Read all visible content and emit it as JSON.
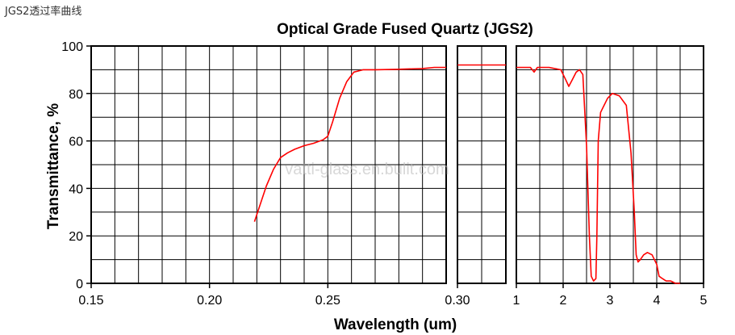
{
  "caption": "JGS2透过率曲线",
  "watermark": "vatti-glass.en.bulit.com",
  "chart_data": {
    "type": "line",
    "title": "Optical Grade Fused Quartz  (JGS2)",
    "xlabel": "Wavelength (um)",
    "ylabel": "Transmittance, %",
    "ylim": [
      0,
      100
    ],
    "yticks": [
      "0",
      "20",
      "40",
      "60",
      "80",
      "100"
    ],
    "grid": true,
    "line_color": "#ff0000",
    "panels": [
      {
        "name": "uv",
        "xlim": [
          0.15,
          0.3
        ],
        "xticks": [
          0.15,
          0.2,
          0.25
        ],
        "xtick_labels": [
          "0.15",
          "0.20",
          "0.25"
        ],
        "grid_x_step": 0.01,
        "x": [
          0.219,
          0.221,
          0.224,
          0.227,
          0.23,
          0.233,
          0.236,
          0.24,
          0.244,
          0.248,
          0.25,
          0.252,
          0.255,
          0.258,
          0.261,
          0.265,
          0.27,
          0.28,
          0.29,
          0.295,
          0.3
        ],
        "y": [
          26,
          32,
          41,
          48,
          53,
          55,
          56.5,
          58,
          59,
          60.5,
          62,
          68,
          78,
          85,
          89,
          90,
          90,
          90.2,
          90.5,
          91,
          91
        ]
      },
      {
        "name": "mid",
        "xlim": [
          0.3,
          0.32
        ],
        "xticks": [
          0.3
        ],
        "xtick_labels": [
          "0.30"
        ],
        "grid_x_step": 0.01,
        "x": [
          0.3,
          0.32
        ],
        "y": [
          92,
          92
        ]
      },
      {
        "name": "ir",
        "xlim": [
          1,
          5
        ],
        "xticks": [
          1,
          2,
          3,
          4,
          5
        ],
        "xtick_labels": [
          "1",
          "2",
          "3",
          "4",
          "5"
        ],
        "grid_x_step": 0.5,
        "x": [
          1.0,
          1.3,
          1.38,
          1.45,
          1.7,
          1.95,
          2.05,
          2.12,
          2.2,
          2.28,
          2.35,
          2.42,
          2.5,
          2.56,
          2.6,
          2.65,
          2.7,
          2.72,
          2.75,
          2.8,
          2.85,
          2.95,
          3.05,
          3.2,
          3.35,
          3.45,
          3.52,
          3.56,
          3.6,
          3.65,
          3.72,
          3.8,
          3.9,
          4.0,
          4.05,
          4.12,
          4.2,
          4.3,
          4.4,
          4.5
        ],
        "y": [
          91,
          91,
          89,
          91,
          91,
          90,
          86,
          83,
          86,
          89,
          90,
          88,
          58,
          20,
          3,
          1,
          2,
          20,
          60,
          72,
          74,
          78,
          80,
          79,
          75,
          55,
          30,
          12,
          9,
          10,
          12,
          13,
          12,
          8,
          3,
          2,
          1,
          1,
          0,
          0
        ]
      }
    ]
  }
}
